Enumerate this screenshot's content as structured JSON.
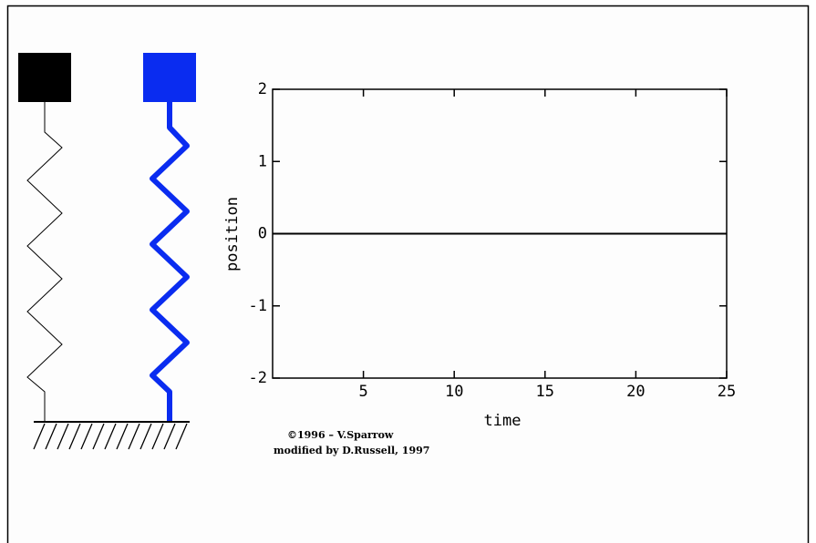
{
  "chart_data": {
    "type": "line",
    "x_label": "time",
    "y_label": "position",
    "x": [
      0,
      25
    ],
    "series": [
      {
        "color": "#000000",
        "values": [
          0,
          0
        ]
      }
    ],
    "xlim": [
      0,
      25
    ],
    "ylim": [
      -2,
      2
    ],
    "xticks": [
      5,
      10,
      15,
      20,
      25
    ],
    "yticks": [
      -2,
      -1,
      0,
      1,
      2
    ],
    "annotations": [
      "©1996 – V.Sparrow",
      "modified by D.Russell, 1997"
    ]
  }
}
